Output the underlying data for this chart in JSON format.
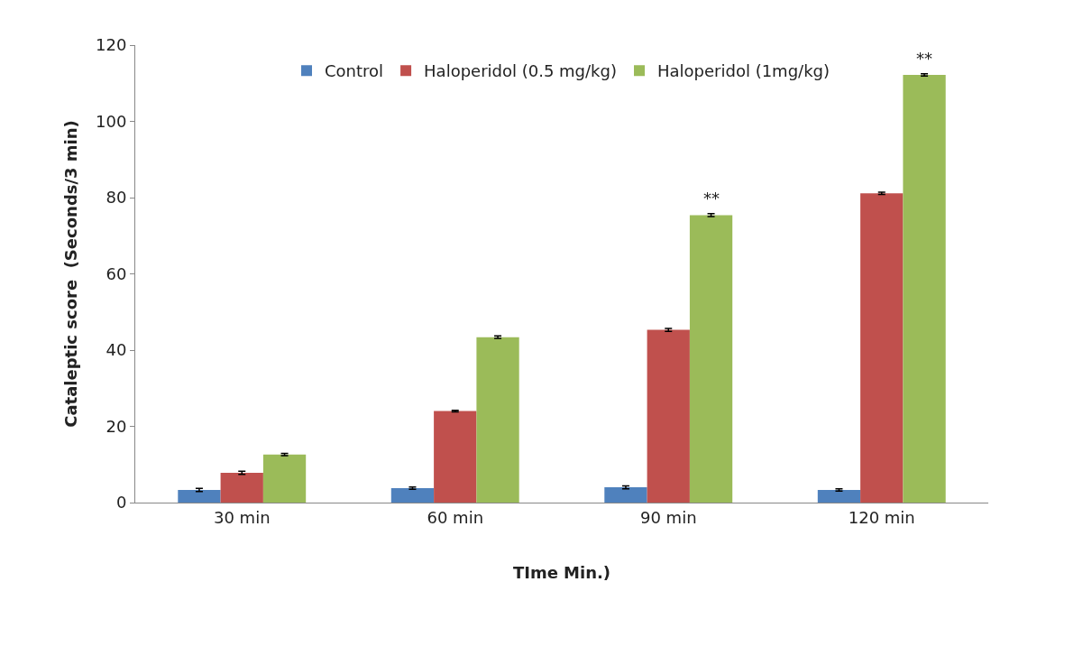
{
  "chart_data": {
    "type": "bar",
    "xlabel": "TIme Min.)",
    "ylabel": "Cataleptic score  (Seconds/3 min)",
    "categories": [
      "30 min",
      "60 min",
      "90 min",
      "120 min"
    ],
    "series": [
      {
        "name": "Control",
        "color": "#4f81bd",
        "values": [
          3.3,
          3.8,
          4.0,
          3.3
        ],
        "errors": [
          0.4,
          0.3,
          0.4,
          0.3
        ]
      },
      {
        "name": "Haloperidol (0.5 mg/kg)",
        "color": "#c0504d",
        "values": [
          7.8,
          24.0,
          45.3,
          81.1
        ],
        "errors": [
          0.4,
          0.2,
          0.4,
          0.3
        ]
      },
      {
        "name": "Haloperidol (1mg/kg)",
        "color": "#9bbb59",
        "values": [
          12.6,
          43.4,
          75.4,
          112.2
        ],
        "errors": [
          0.3,
          0.3,
          0.4,
          0.3
        ]
      }
    ],
    "ylim": [
      0,
      120
    ],
    "yticks": [
      0,
      20,
      40,
      60,
      80,
      100,
      120
    ],
    "legend": "top",
    "annotations": [
      "**",
      "**"
    ]
  }
}
